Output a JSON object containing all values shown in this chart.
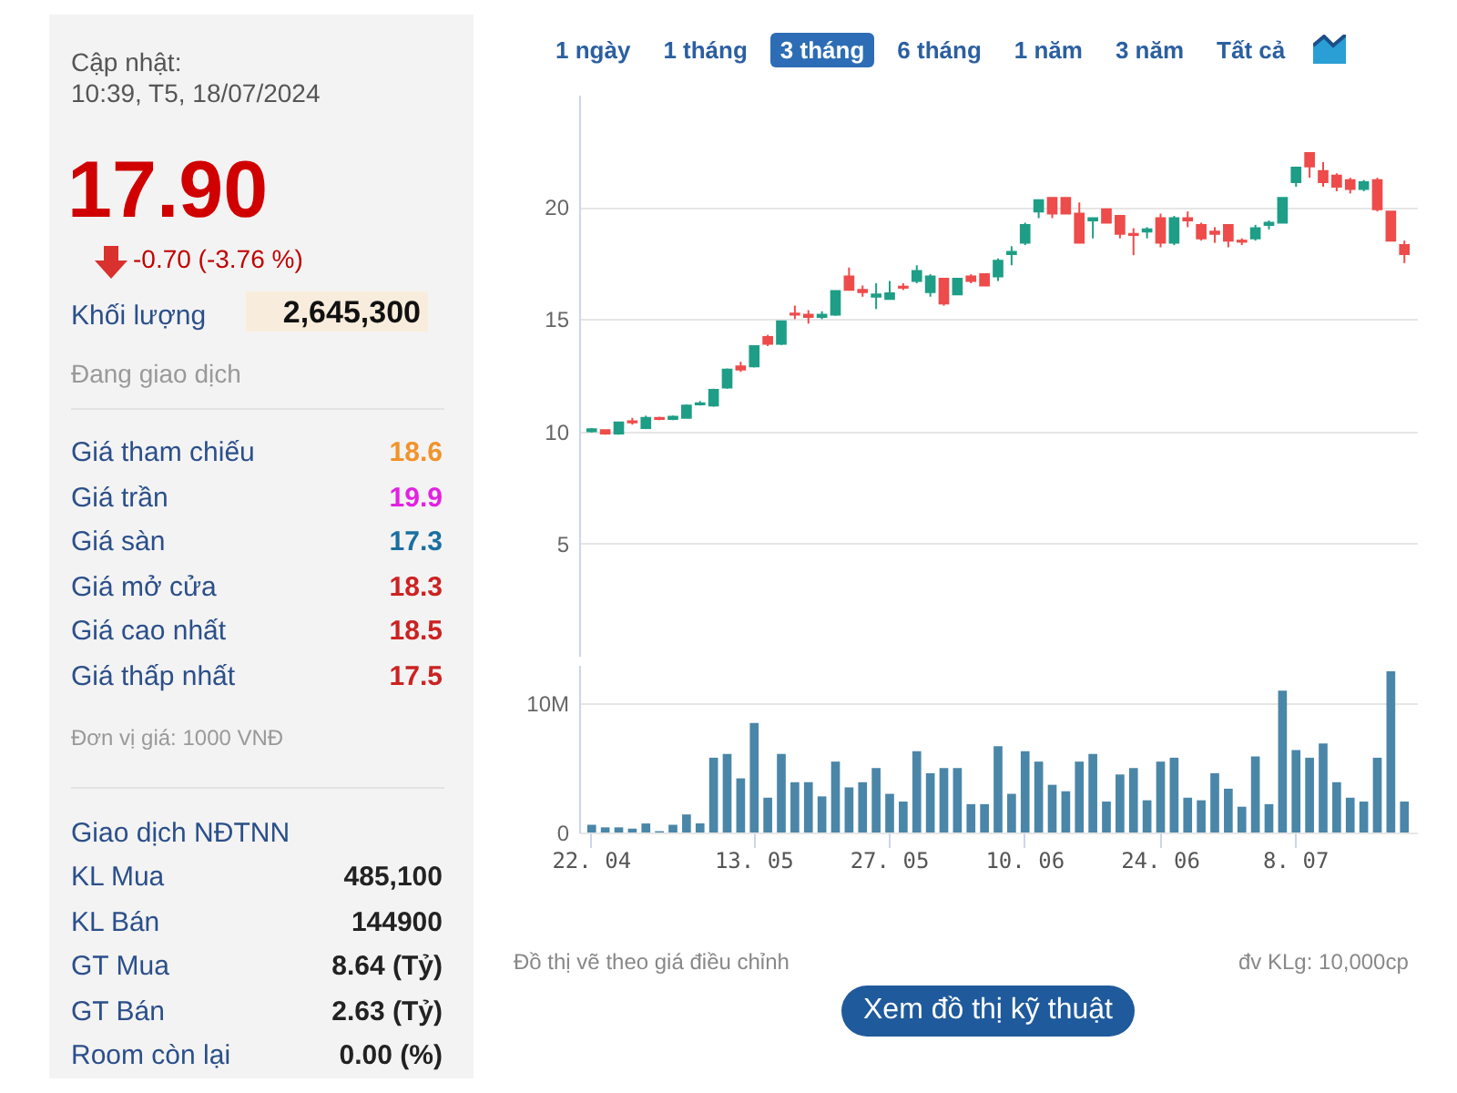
{
  "chart_data": [
    {
      "type": "other",
      "title": "Cập nhật:",
      "subtitle": "10:39, T5, 18/07/2024",
      "annotations": [
        "17.90",
        "-0.70 (-3.76 %)",
        "Khối lượng",
        "2,645,300",
        "Đang giao dịch",
        "Giá tham chiếu",
        "18.6",
        "Giá trần",
        "19.9",
        "Giá sàn",
        "17.3",
        "Giá mở cửa",
        "18.3",
        "Giá cao nhất",
        "18.5",
        "Giá thấp nhất",
        "17.5",
        "Đơn vị giá: 1000 VNĐ",
        "Giao dịch NĐTNN",
        "KL Mua",
        "485,100",
        "KL Bán",
        "144900",
        "GT Mua",
        "8.64 (Tỷ)",
        "GT Bán",
        "2.63 (Tỷ)",
        "Room còn lại",
        "0.00 (%)"
      ]
    },
    {
      "type": "candlestick",
      "annotations": [
        "1 ngày",
        "1 tháng",
        "3 tháng",
        "6 tháng",
        "1 năm",
        "3 năm",
        "Tất cả"
      ],
      "categories": [
        null,
        null,
        null,
        null,
        null,
        null,
        null,
        null,
        null,
        null,
        null,
        null,
        null,
        null,
        null,
        null,
        null,
        null,
        null,
        null,
        null,
        null,
        null,
        null,
        null,
        null,
        null,
        null,
        null,
        null,
        null,
        null,
        null,
        null,
        null,
        null,
        null,
        null,
        null,
        null,
        null,
        null,
        null,
        null,
        null,
        null,
        null,
        null,
        null,
        null,
        null,
        null,
        null,
        null,
        null,
        null,
        null,
        null,
        null,
        null,
        null
      ],
      "ohlc": [
        [
          10.0,
          10.15,
          9.95,
          10.1
        ],
        [
          10.05,
          10.05,
          9.85,
          9.9
        ],
        [
          9.9,
          10.4,
          9.85,
          10.4
        ],
        [
          10.45,
          10.6,
          10.3,
          10.4
        ],
        [
          10.15,
          10.7,
          10.1,
          10.6
        ],
        [
          10.6,
          10.65,
          10.5,
          10.55
        ],
        [
          10.55,
          10.7,
          10.5,
          10.65
        ],
        [
          10.6,
          11.2,
          10.6,
          11.15
        ],
        [
          11.2,
          11.35,
          11.15,
          11.25
        ],
        [
          11.15,
          11.9,
          11.1,
          11.85
        ],
        [
          11.95,
          12.8,
          11.9,
          12.75
        ],
        [
          12.9,
          13.1,
          12.65,
          12.75
        ],
        [
          12.9,
          13.8,
          12.85,
          13.8
        ],
        [
          14.2,
          14.3,
          13.8,
          13.9
        ],
        [
          13.9,
          14.9,
          13.85,
          14.9
        ],
        [
          15.25,
          15.6,
          15.0,
          15.2
        ],
        [
          15.2,
          15.4,
          14.8,
          15.1
        ],
        [
          15.1,
          15.35,
          15.0,
          15.2
        ],
        [
          15.2,
          16.25,
          15.15,
          16.25
        ],
        [
          16.9,
          17.3,
          16.3,
          16.3
        ],
        [
          16.3,
          16.5,
          16.0,
          16.2
        ],
        [
          16.0,
          16.6,
          15.45,
          16.1
        ],
        [
          15.9,
          16.7,
          15.9,
          16.15
        ],
        [
          16.45,
          16.6,
          16.3,
          16.4
        ],
        [
          16.7,
          17.4,
          16.6,
          17.15
        ],
        [
          16.2,
          17.0,
          16.0,
          16.9
        ],
        [
          16.8,
          16.8,
          15.6,
          15.7
        ],
        [
          16.1,
          16.8,
          16.1,
          16.8
        ],
        [
          16.9,
          17.0,
          16.6,
          16.7
        ],
        [
          17.0,
          17.0,
          16.5,
          16.5
        ],
        [
          16.9,
          17.7,
          16.7,
          17.6
        ],
        [
          17.9,
          18.25,
          17.4,
          18.0
        ],
        [
          18.4,
          19.3,
          18.3,
          19.2
        ],
        [
          19.8,
          20.3,
          19.5,
          20.3
        ],
        [
          20.4,
          20.4,
          19.5,
          19.7
        ],
        [
          20.4,
          20.4,
          19.7,
          19.7
        ],
        [
          19.7,
          20.2,
          18.4,
          18.4
        ],
        [
          19.4,
          19.5,
          18.6,
          19.5
        ],
        [
          19.9,
          19.9,
          19.3,
          19.3
        ],
        [
          19.6,
          19.6,
          18.6,
          18.8
        ],
        [
          18.8,
          19.05,
          17.85,
          18.75
        ],
        [
          18.9,
          19.1,
          18.6,
          19.0
        ],
        [
          19.5,
          19.7,
          18.2,
          18.4
        ],
        [
          18.4,
          19.6,
          18.3,
          19.5
        ],
        [
          19.5,
          19.8,
          19.1,
          19.4
        ],
        [
          19.2,
          19.3,
          18.5,
          18.6
        ],
        [
          18.9,
          19.1,
          18.4,
          18.8
        ],
        [
          19.2,
          19.2,
          18.2,
          18.5
        ],
        [
          18.5,
          18.6,
          18.3,
          18.45
        ],
        [
          18.6,
          19.2,
          18.5,
          19.05
        ],
        [
          19.2,
          19.4,
          19.0,
          19.3
        ],
        [
          19.3,
          20.4,
          19.3,
          20.4
        ],
        [
          21.1,
          21.8,
          20.9,
          21.75
        ],
        [
          22.4,
          22.4,
          21.3,
          21.8
        ],
        [
          21.6,
          22.0,
          20.9,
          21.1
        ],
        [
          21.4,
          21.5,
          20.7,
          20.9
        ],
        [
          21.2,
          21.3,
          20.6,
          20.8
        ],
        [
          20.8,
          21.2,
          20.7,
          21.1
        ],
        [
          21.2,
          21.3,
          19.8,
          19.9
        ],
        [
          19.8,
          19.8,
          18.5,
          18.5
        ],
        [
          18.3,
          18.5,
          17.5,
          17.9
        ]
      ],
      "ylim": [
        0,
        25
      ],
      "yticks": [
        5,
        10,
        15,
        20
      ],
      "grid": "y"
    },
    {
      "type": "bar",
      "annotations": [
        "Đồ thị vẽ theo giá điều chỉnh",
        "đv KLg: 10,000cp",
        "Xem đồ thị kỹ thuật"
      ],
      "categories": [
        "22. 04",
        null,
        null,
        null,
        null,
        null,
        null,
        null,
        null,
        null,
        null,
        null,
        "13. 05",
        null,
        null,
        null,
        null,
        null,
        null,
        null,
        null,
        null,
        "27. 05",
        null,
        null,
        null,
        null,
        null,
        null,
        null,
        null,
        null,
        "10. 06",
        null,
        null,
        null,
        null,
        null,
        null,
        null,
        null,
        null,
        "24. 06",
        null,
        null,
        null,
        null,
        null,
        null,
        null,
        null,
        null,
        "8. 07",
        null,
        null,
        null,
        null,
        null,
        null,
        null,
        null
      ],
      "series": [
        {
          "color": "#4a86a8",
          "values": [
            0.6,
            0.4,
            0.4,
            0.3,
            0.7,
            0.1,
            0.6,
            1.4,
            0.7,
            5.8,
            6.1,
            4.2,
            8.5,
            2.7,
            6.1,
            3.9,
            3.9,
            2.8,
            5.5,
            3.5,
            3.9,
            5.0,
            3.0,
            2.4,
            6.3,
            4.6,
            5.0,
            5.0,
            2.2,
            2.2,
            6.7,
            3.0,
            6.3,
            5.5,
            3.7,
            3.2,
            5.5,
            6.1,
            2.4,
            4.5,
            5.0,
            2.5,
            5.5,
            5.8,
            2.7,
            2.5,
            4.6,
            3.4,
            2.0,
            5.9,
            2.2,
            11.0,
            6.4,
            5.8,
            6.9,
            3.9,
            2.7,
            2.4,
            5.8,
            12.5,
            2.4
          ]
        }
      ],
      "ylim": [
        0,
        13
      ],
      "yticks": [
        0,
        {
          "value": 10,
          "label": "10M"
        }
      ],
      "grid": "y"
    }
  ]
}
